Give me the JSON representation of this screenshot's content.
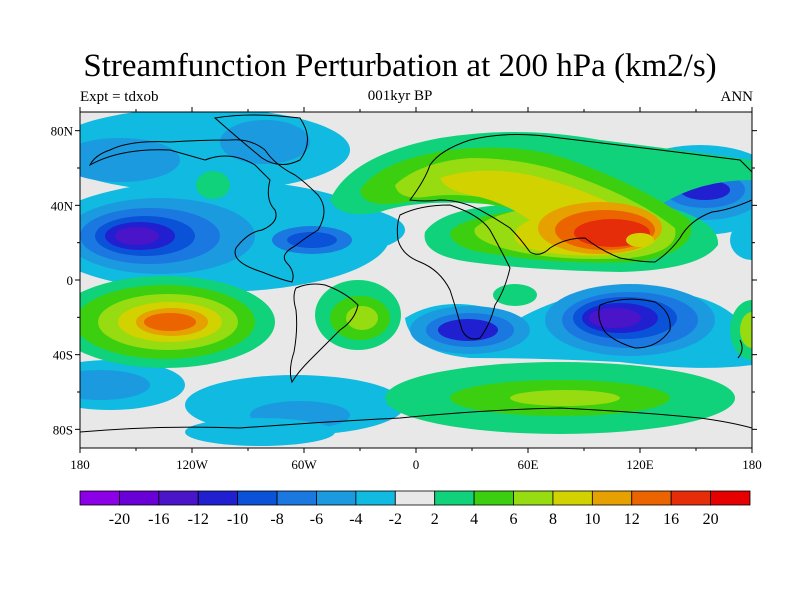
{
  "title": "Streamfunction Perturbation at 200 hPa (km2/s)",
  "left_subtitle": "Expt = tdxob",
  "center_subtitle": "001kyr BP",
  "right_subtitle": "ANN",
  "lat_ticks": [
    "80N",
    "40N",
    "0",
    "40S",
    "80S"
  ],
  "lon_ticks": [
    "180",
    "120W",
    "60W",
    "0",
    "60E",
    "120E",
    "180"
  ],
  "colorbar": {
    "labels": [
      "-20",
      "-16",
      "-12",
      "-10",
      "-8",
      "-6",
      "-4",
      "-2",
      "2",
      "4",
      "6",
      "8",
      "10",
      "12",
      "16",
      "20"
    ],
    "colors": [
      "#8b00e6",
      "#6a00d8",
      "#4a14c8",
      "#2020d0",
      "#0a52d8",
      "#1b78e0",
      "#1b9ae0",
      "#10bae0",
      "#e8e8e8",
      "#10d27a",
      "#3ccf10",
      "#96dc10",
      "#d2d200",
      "#e6a000",
      "#eb6400",
      "#e62d0a",
      "#e60000"
    ]
  }
}
